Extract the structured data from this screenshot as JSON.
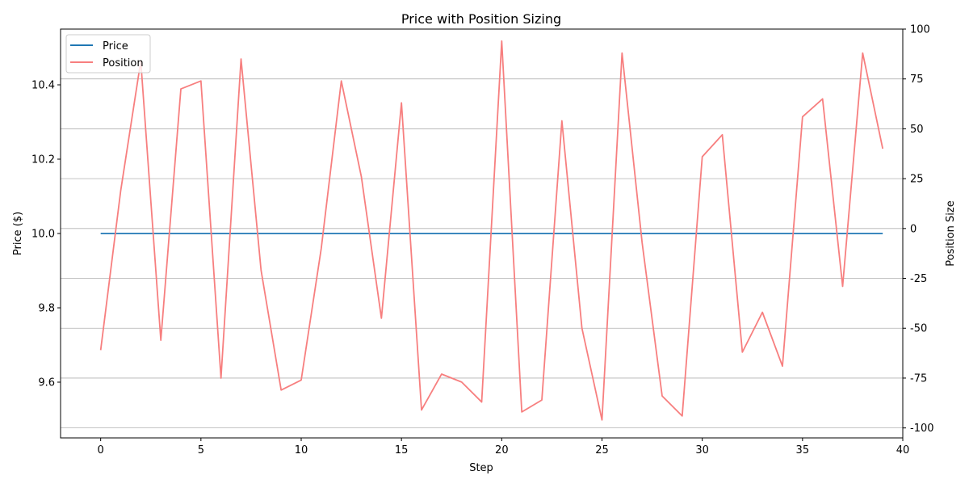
{
  "chart_data": {
    "type": "line",
    "title": "Price with Position Sizing",
    "xlabel": "Step",
    "ylabel": "Price ($)",
    "y2label": "Position Size",
    "xlim": [
      -2,
      40
    ],
    "ylim": [
      9.45,
      10.55
    ],
    "y2lim": [
      -105,
      100
    ],
    "x_ticks": [
      0,
      5,
      10,
      15,
      20,
      25,
      30,
      35,
      40
    ],
    "y_ticks": [
      9.6,
      9.8,
      10.0,
      10.2,
      10.4
    ],
    "y_tick_labels": [
      "9.6",
      "9.8",
      "10.0",
      "10.2",
      "10.4"
    ],
    "y2_ticks": [
      -100,
      -75,
      -50,
      -25,
      0,
      25,
      50,
      75,
      100
    ],
    "grid": "horizontal lines on secondary axis",
    "legend": "top-left",
    "x": [
      0,
      1,
      2,
      3,
      4,
      5,
      6,
      7,
      8,
      9,
      10,
      11,
      12,
      13,
      14,
      15,
      16,
      17,
      18,
      19,
      20,
      21,
      22,
      23,
      24,
      25,
      26,
      27,
      28,
      29,
      30,
      31,
      32,
      33,
      34,
      35,
      36,
      37,
      38,
      39
    ],
    "series": [
      {
        "name": "Price",
        "axis": "left",
        "color": "#1f77b4",
        "values": [
          10,
          10,
          10,
          10,
          10,
          10,
          10,
          10,
          10,
          10,
          10,
          10,
          10,
          10,
          10,
          10,
          10,
          10,
          10,
          10,
          10,
          10,
          10,
          10,
          10,
          10,
          10,
          10,
          10,
          10,
          10,
          10,
          10,
          10,
          10,
          10,
          10,
          10,
          10,
          10
        ]
      },
      {
        "name": "Position",
        "axis": "right",
        "color": "#f77f7f",
        "values": [
          -61,
          19,
          84,
          -56,
          70,
          74,
          -75,
          85,
          -21,
          -81,
          -76,
          -10,
          74,
          26,
          -45,
          63,
          -91,
          -73,
          -77,
          -87,
          94,
          -92,
          -86,
          54,
          -50,
          -96,
          88,
          -7,
          -84,
          -94,
          36,
          47,
          -62,
          -42,
          -69,
          56,
          65,
          -29,
          88,
          40
        ]
      }
    ]
  }
}
